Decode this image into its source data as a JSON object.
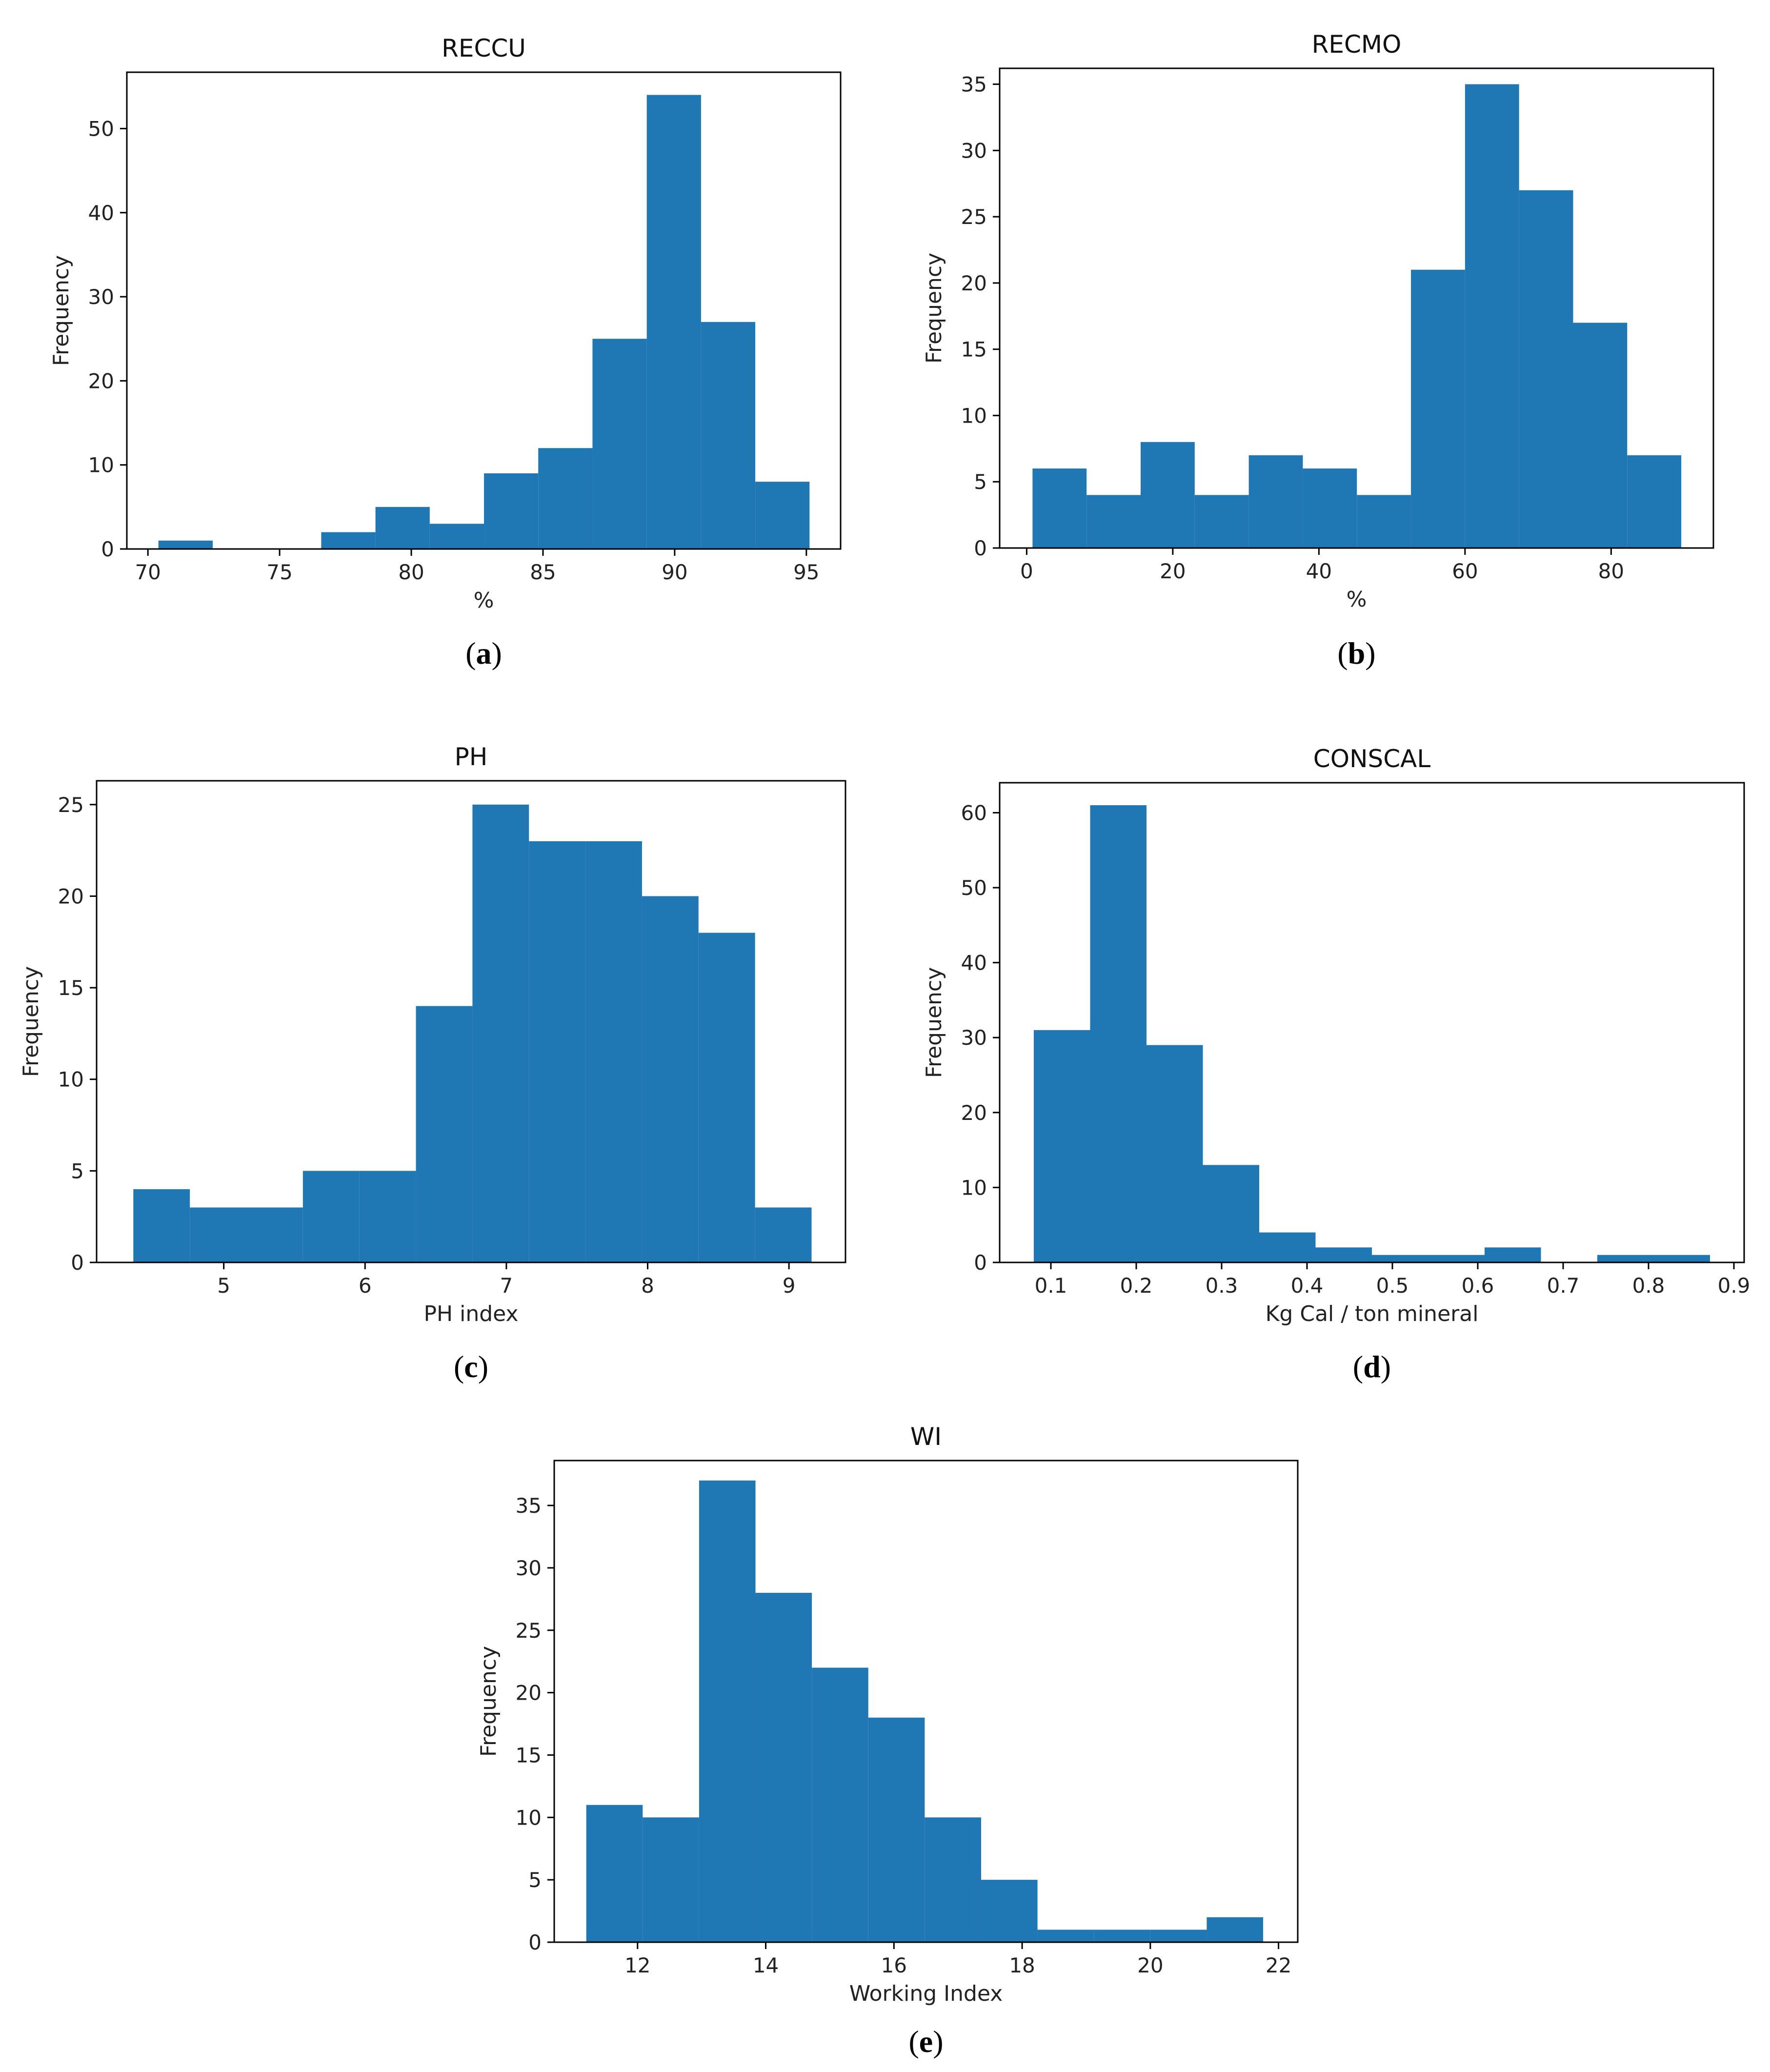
{
  "bar_color": "#1f77b4",
  "chart_data": [
    {
      "id": "a",
      "type": "bar",
      "panel_label": "a",
      "title": "RECCU",
      "xlabel": "%",
      "ylabel": "Frequency",
      "bin_edges": [
        70.4,
        72.46,
        74.52,
        76.58,
        78.64,
        80.7,
        82.76,
        84.82,
        86.88,
        88.94,
        91.0,
        93.06,
        95.12
      ],
      "values": [
        1,
        0,
        0,
        2,
        5,
        3,
        9,
        12,
        25,
        54,
        27,
        8
      ],
      "xlim": [
        69.2,
        96.3
      ],
      "ylim": [
        0,
        56.7
      ],
      "xticks": [
        70,
        75,
        80,
        85,
        90,
        95
      ],
      "yticks": [
        0,
        10,
        20,
        30,
        40,
        50
      ]
    },
    {
      "id": "b",
      "type": "bar",
      "panel_label": "b",
      "title": "RECMO",
      "xlabel": "%",
      "ylabel": "Frequency",
      "bin_edges": [
        0.8,
        8.2,
        15.6,
        23.0,
        30.4,
        37.8,
        45.2,
        52.6,
        60.0,
        67.4,
        74.8,
        82.2,
        89.6
      ],
      "values": [
        6,
        4,
        8,
        4,
        7,
        6,
        4,
        21,
        35,
        27,
        17,
        7
      ],
      "xlim": [
        -3.7,
        94.0
      ],
      "ylim": [
        0,
        36.2
      ],
      "xticks": [
        0,
        20,
        40,
        60,
        80
      ],
      "yticks": [
        0,
        5,
        10,
        15,
        20,
        25,
        30,
        35
      ]
    },
    {
      "id": "c",
      "type": "bar",
      "panel_label": "c",
      "title": "PH",
      "xlabel": "PH index",
      "ylabel": "Frequency",
      "bin_edges": [
        4.36,
        4.76,
        5.16,
        5.56,
        5.96,
        6.36,
        6.76,
        7.16,
        7.56,
        7.96,
        8.36,
        8.76,
        9.16
      ],
      "values": [
        4,
        3,
        3,
        5,
        5,
        14,
        25,
        23,
        23,
        20,
        18,
        3
      ],
      "xlim": [
        4.1,
        9.4
      ],
      "ylim": [
        0,
        26.3
      ],
      "xticks": [
        5,
        6,
        7,
        8,
        9
      ],
      "yticks": [
        0,
        5,
        10,
        15,
        20,
        25
      ]
    },
    {
      "id": "d",
      "type": "bar",
      "panel_label": "d",
      "title": "CONSCAL",
      "xlabel": "Kg Cal / ton mineral",
      "ylabel": "Frequency",
      "bin_edges": [
        0.08,
        0.146,
        0.212,
        0.278,
        0.344,
        0.41,
        0.476,
        0.542,
        0.608,
        0.674,
        0.74,
        0.806,
        0.872
      ],
      "values": [
        31,
        61,
        29,
        13,
        4,
        2,
        1,
        1,
        2,
        0,
        1,
        1
      ],
      "xlim": [
        0.04,
        0.912
      ],
      "ylim": [
        0,
        64.0
      ],
      "xticks": [
        0.1,
        0.2,
        0.3,
        0.4,
        0.5,
        0.6,
        0.7,
        0.8,
        0.9
      ],
      "xtick_labels": [
        "0.1",
        "0.2",
        "0.3",
        "0.4",
        "0.5",
        "0.6",
        "0.7",
        "0.8",
        "0.9"
      ],
      "yticks": [
        0,
        10,
        20,
        30,
        40,
        50,
        60
      ]
    },
    {
      "id": "e",
      "type": "bar",
      "panel_label": "e",
      "title": "WI",
      "xlabel": "Working Index",
      "ylabel": "Frequency",
      "bin_edges": [
        11.2,
        12.08,
        12.96,
        13.84,
        14.72,
        15.6,
        16.48,
        17.36,
        18.24,
        19.12,
        20.0,
        20.88,
        21.76
      ],
      "values": [
        11,
        10,
        37,
        28,
        22,
        18,
        10,
        5,
        1,
        1,
        1,
        2
      ],
      "xlim": [
        10.7,
        22.3
      ],
      "ylim": [
        0,
        38.6
      ],
      "xticks": [
        12,
        14,
        16,
        18,
        20,
        22
      ],
      "yticks": [
        0,
        5,
        10,
        15,
        20,
        25,
        30,
        35
      ]
    }
  ]
}
